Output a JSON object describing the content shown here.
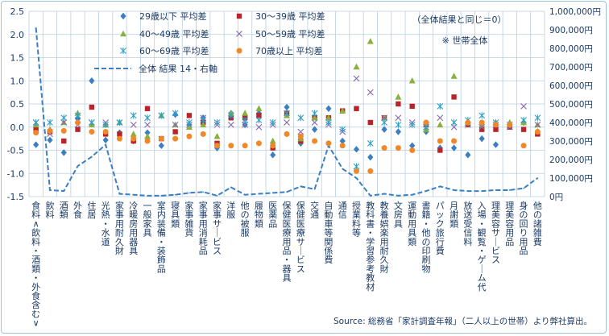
{
  "chart_data": {
    "type": "scatter",
    "categories": [
      "食料（飲料・酒類・外食含む）",
      "飲料",
      "酒類",
      "外食",
      "住居",
      "光熱・水道",
      "家事用耐久財",
      "冷暖房用器具",
      "一般家具",
      "室内装備・装飾品",
      "寝具類",
      "家事雑貨",
      "家事用消耗品",
      "家事サービス",
      "洋服",
      "他の被服",
      "履物類",
      "医薬品",
      "保健医療用品・器具",
      "保健医療サービス",
      "交通",
      "自動車等関係費",
      "通信",
      "授業料等",
      "教科書・学習参考教材",
      "教養娯楽用耐久財",
      "文房具",
      "運動用具類",
      "書籍・他の印刷物",
      "パック旅行費",
      "月謝類",
      "放送受信料",
      "入場・観覧・ゲーム代",
      "理美容サービス",
      "理美容用品",
      "身の回り用品",
      "他の諸雑費"
    ],
    "left_axis": {
      "min": -1.5,
      "max": 2.5,
      "step": 0.5,
      "ticks": [
        "-1.5",
        "-1.0",
        "-0.5",
        "0.0",
        "0.5",
        "1.0",
        "1.5",
        "2.0",
        "2.5"
      ]
    },
    "right_axis": {
      "min": 0,
      "max": 1000000,
      "step": 100000,
      "ticks": [
        "0円",
        "100,000円",
        "200,000円",
        "300,000円",
        "400,000円",
        "500,000円",
        "600,000円",
        "700,000円",
        "800,000円",
        "900,000円",
        "1,000,000円"
      ]
    },
    "series": [
      {
        "name": "29歳以下 平均差",
        "axis": "left",
        "marker": "diamond",
        "color": "#3a7fc1",
        "values": [
          -0.38,
          -0.28,
          -0.55,
          0.18,
          1.0,
          -0.28,
          -0.12,
          -0.3,
          -0.12,
          -0.4,
          0.27,
          0.05,
          0.2,
          -0.45,
          0.3,
          0.05,
          0.3,
          -0.6,
          0.43,
          -0.35,
          -0.05,
          0.4,
          -0.3,
          -0.48,
          -0.65,
          -0.05,
          -0.1,
          -0.4,
          -0.1,
          -0.45,
          -0.45,
          -0.6,
          -0.25,
          -0.38,
          0.05,
          0.1,
          -0.1
        ]
      },
      {
        "name": "30～39歳 平均差",
        "axis": "left",
        "marker": "square",
        "color": "#b8242a",
        "values": [
          -0.05,
          -0.1,
          -0.3,
          -0.05,
          0.43,
          -0.15,
          -0.15,
          -0.3,
          0.4,
          -0.25,
          -0.1,
          0.25,
          0.1,
          -0.35,
          0.2,
          0.2,
          0.25,
          -0.45,
          0.3,
          -0.3,
          0.2,
          0.2,
          0.35,
          0.4,
          0.1,
          0.2,
          0.5,
          0.45,
          0.05,
          -0.5,
          0.65,
          0.05,
          -0.05,
          -0.05,
          0.0,
          -0.05,
          -0.15
        ]
      },
      {
        "name": "40～49歳 平均差",
        "axis": "left",
        "marker": "triangle",
        "color": "#8ab040",
        "values": [
          0.05,
          -0.05,
          0.1,
          0.3,
          0.05,
          0.05,
          0.1,
          -0.15,
          -0.2,
          0.25,
          0.05,
          0.0,
          0.05,
          -0.2,
          0.3,
          0.3,
          0.4,
          -0.3,
          0.25,
          -0.25,
          0.2,
          0.2,
          0.35,
          1.3,
          1.85,
          0.2,
          0.65,
          1.0,
          -0.05,
          0.05,
          1.1,
          0.1,
          0.05,
          0.1,
          0.1,
          0.1,
          0.05
        ]
      },
      {
        "name": "50～59歳 平均差",
        "axis": "left",
        "marker": "x",
        "color": "#8a6ab0",
        "values": [
          0.1,
          -0.15,
          0.1,
          0.05,
          0.1,
          0.1,
          0.1,
          0.05,
          0.05,
          0.25,
          0.05,
          0.05,
          0.2,
          0.05,
          0.05,
          0.05,
          0.0,
          0.05,
          0.1,
          -0.1,
          0.1,
          0.05,
          -0.1,
          1.05,
          0.75,
          0.2,
          0.2,
          0.1,
          0.05,
          0.2,
          0.0,
          0.05,
          0.0,
          0.05,
          0.0,
          0.45,
          0.05
        ]
      },
      {
        "name": "60～69歳 平均差",
        "axis": "left",
        "marker": "asterisk",
        "color": "#2aa0c8",
        "values": [
          0.1,
          0.1,
          0.2,
          0.25,
          0.1,
          0.05,
          0.1,
          0.25,
          0.2,
          0.25,
          0.3,
          0.1,
          0.15,
          0.1,
          0.25,
          0.15,
          0.15,
          0.1,
          0.3,
          0.2,
          0.3,
          0.1,
          -0.05,
          -0.85,
          -0.35,
          0.1,
          0.05,
          0.05,
          0.0,
          0.45,
          0.1,
          0.15,
          0.25,
          0.1,
          0.05,
          0.15,
          0.2
        ]
      },
      {
        "name": "70歳以上 平均差",
        "axis": "left",
        "marker": "circle",
        "color": "#f0882a",
        "values": [
          -0.12,
          -0.08,
          -0.08,
          0.1,
          -0.1,
          -0.1,
          -0.25,
          -0.25,
          -0.3,
          -0.25,
          -0.25,
          -0.2,
          -0.15,
          -0.4,
          -0.4,
          -0.4,
          -0.35,
          -0.4,
          -0.15,
          -0.2,
          -0.3,
          -0.35,
          -0.4,
          -0.95,
          -0.95,
          -0.45,
          -0.45,
          -0.5,
          0.1,
          -0.3,
          -0.3,
          0.1,
          0.1,
          0.05,
          0.05,
          -0.4,
          -0.1
        ]
      },
      {
        "name": "全体 結果 14・右軸",
        "axis": "right",
        "marker": "line",
        "color": "#3a7fc1",
        "values": [
          910000,
          35000,
          30000,
          165000,
          215000,
          280000,
          15000,
          10000,
          5000,
          5000,
          10000,
          20000,
          25000,
          5000,
          50000,
          10000,
          15000,
          20000,
          25000,
          55000,
          40000,
          275000,
          150000,
          100000,
          5000,
          15000,
          5000,
          10000,
          30000,
          55000,
          35000,
          30000,
          30000,
          35000,
          35000,
          45000,
          100000
        ]
      }
    ],
    "annotations": [
      "（全体結果と同じ＝0）",
      "※ 世帯全体"
    ]
  },
  "source": "Source: 総務省「家計調査年報」（二人以上の世帯）より弊社算出。",
  "colors": {
    "frame_border": "#9ec3dc",
    "grid": "#b8cfe0",
    "text": "#1a3a66"
  }
}
